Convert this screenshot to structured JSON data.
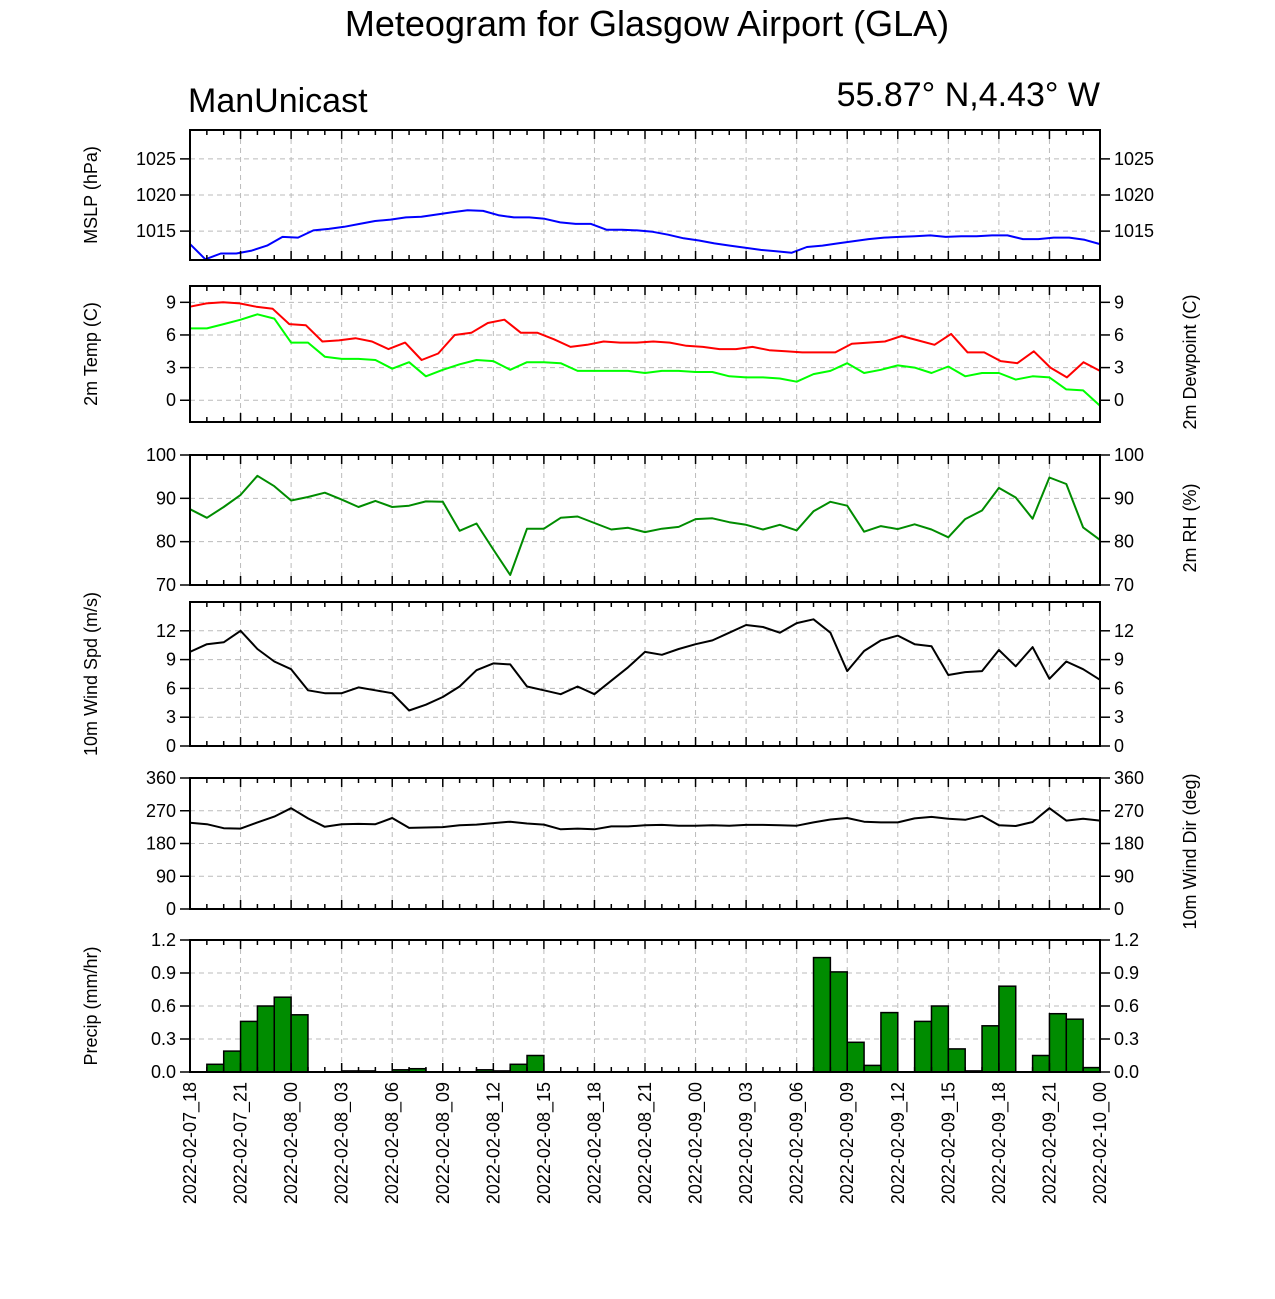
{
  "title": "Meteogram for Glasgow Airport (GLA)",
  "model": "ManUnicast",
  "location": "55.87° N,4.43° W",
  "colors": {
    "mslp": "#0000ff",
    "temp": "#ff0000",
    "dewpoint": "#00ff00",
    "rh": "#008c00",
    "wind": "#000000",
    "precip_fill": "#008c00"
  },
  "x_tick_labels": [
    "2022-02-07_18",
    "2022-02-07_21",
    "2022-02-08_00",
    "2022-02-08_03",
    "2022-02-08_06",
    "2022-02-08_09",
    "2022-02-08_12",
    "2022-02-08_15",
    "2022-02-08_18",
    "2022-02-08_21",
    "2022-02-09_00",
    "2022-02-09_03",
    "2022-02-09_06",
    "2022-02-09_09",
    "2022-02-09_12",
    "2022-02-09_15",
    "2022-02-09_18",
    "2022-02-09_21",
    "2022-02-10_00"
  ],
  "chart_data": [
    {
      "type": "line",
      "ylabel": "MSLP (hPa)",
      "yticks": [
        1015,
        1020,
        1025
      ],
      "ylim": [
        1011,
        1029
      ],
      "right_ticks": true,
      "grid": true,
      "x_range": [
        "2022-02-07_18",
        "2022-02-10_00"
      ],
      "series": [
        {
          "color": "mslp",
          "values": [
            1013.2,
            1011.1,
            1011.9,
            1011.9,
            1012.3,
            1013.0,
            1014.2,
            1014.1,
            1015.1,
            1015.3,
            1015.6,
            1016.0,
            1016.4,
            1016.6,
            1016.9,
            1017.0,
            1017.3,
            1017.6,
            1017.9,
            1017.8,
            1017.2,
            1016.9,
            1016.9,
            1016.7,
            1016.2,
            1016.0,
            1016.0,
            1015.2,
            1015.2,
            1015.1,
            1014.9,
            1014.5,
            1014.0,
            1013.7,
            1013.3,
            1013.0,
            1012.7,
            1012.4,
            1012.2,
            1012.0,
            1012.8,
            1013.0,
            1013.3,
            1013.6,
            1013.9,
            1014.1,
            1014.2,
            1014.3,
            1014.4,
            1014.2,
            1014.3,
            1014.3,
            1014.4,
            1014.4,
            1013.9,
            1013.9,
            1014.1,
            1014.1,
            1013.8,
            1013.2
          ]
        }
      ]
    },
    {
      "type": "line",
      "ylabel": "2m Temp (C)",
      "ylabel_right": "2m Dewpoint (C)",
      "yticks": [
        0,
        3,
        6,
        9
      ],
      "ylim": [
        -2,
        10.5
      ],
      "right_ticks": true,
      "grid": true,
      "series": [
        {
          "color": "temp",
          "values": [
            8.6,
            8.9,
            9.0,
            8.9,
            8.6,
            8.4,
            7.0,
            6.9,
            5.4,
            5.5,
            5.7,
            5.4,
            4.7,
            5.3,
            3.7,
            4.3,
            6.0,
            6.2,
            7.1,
            7.4,
            6.2,
            6.2,
            5.6,
            4.9,
            5.1,
            5.4,
            5.3,
            5.3,
            5.4,
            5.3,
            5.0,
            4.9,
            4.7,
            4.7,
            4.9,
            4.6,
            4.5,
            4.4,
            4.4,
            4.4,
            5.2,
            5.3,
            5.4,
            5.9,
            5.5,
            5.1,
            6.1,
            4.4,
            4.4,
            3.6,
            3.4,
            4.5,
            3.0,
            2.1,
            3.5,
            2.7
          ]
        },
        {
          "color": "dewpoint",
          "values": [
            6.6,
            6.6,
            7.0,
            7.4,
            7.9,
            7.5,
            5.3,
            5.3,
            4.0,
            3.8,
            3.8,
            3.7,
            2.9,
            3.5,
            2.2,
            2.8,
            3.3,
            3.7,
            3.6,
            2.8,
            3.5,
            3.5,
            3.4,
            2.7,
            2.7,
            2.7,
            2.7,
            2.5,
            2.7,
            2.7,
            2.6,
            2.6,
            2.2,
            2.1,
            2.1,
            2.0,
            1.7,
            2.4,
            2.7,
            3.4,
            2.5,
            2.8,
            3.2,
            3.0,
            2.5,
            3.1,
            2.2,
            2.5,
            2.5,
            1.9,
            2.2,
            2.1,
            1.0,
            0.9,
            -0.5
          ]
        }
      ]
    },
    {
      "type": "line",
      "ylabel": "",
      "ylabel_right": "2m RH (%)",
      "yticks": [
        70,
        80,
        90,
        100
      ],
      "ylim": [
        70,
        100
      ],
      "right_ticks": true,
      "grid": true,
      "series": [
        {
          "color": "rh",
          "values": [
            87.5,
            85.5,
            88.0,
            90.8,
            95.2,
            92.8,
            89.5,
            90.3,
            91.3,
            89.7,
            88.0,
            89.4,
            88.0,
            88.3,
            89.3,
            89.2,
            82.5,
            84.2,
            78.2,
            72.3,
            83.0,
            83.0,
            85.5,
            85.8,
            84.3,
            82.8,
            83.2,
            82.2,
            83.0,
            83.4,
            85.2,
            85.4,
            84.5,
            83.9,
            82.8,
            83.9,
            82.6,
            87.0,
            89.2,
            88.3,
            82.3,
            83.6,
            82.9,
            84.0,
            82.8,
            81.0,
            85.2,
            87.2,
            92.4,
            90.2,
            85.3,
            94.8,
            93.3,
            83.3,
            80.4
          ]
        }
      ]
    },
    {
      "type": "line",
      "ylabel": "10m Wind Spd (m/s)",
      "yticks": [
        0,
        3,
        6,
        9,
        12
      ],
      "ylim": [
        0,
        15
      ],
      "right_ticks": true,
      "grid": true,
      "series": [
        {
          "color": "wind",
          "values": [
            9.8,
            10.6,
            10.8,
            12.0,
            10.1,
            8.8,
            8.0,
            5.8,
            5.5,
            5.5,
            6.1,
            5.8,
            5.5,
            3.7,
            4.3,
            5.1,
            6.2,
            7.9,
            8.6,
            8.5,
            6.2,
            5.8,
            5.4,
            6.2,
            5.4,
            6.8,
            8.2,
            9.8,
            9.5,
            10.1,
            10.6,
            11.0,
            11.8,
            12.6,
            12.4,
            11.8,
            12.8,
            13.2,
            11.8,
            7.8,
            9.9,
            11.0,
            11.5,
            10.6,
            10.4,
            7.4,
            7.7,
            7.8,
            10.0,
            8.3,
            10.3,
            7.0,
            8.8,
            8.0,
            6.9
          ]
        }
      ]
    },
    {
      "type": "line",
      "ylabel": "",
      "ylabel_right": "10m Wind Dir (deg)",
      "yticks": [
        0,
        90,
        180,
        270,
        360
      ],
      "ylim": [
        0,
        360
      ],
      "right_ticks": true,
      "grid": true,
      "series": [
        {
          "color": "wind",
          "values": [
            237,
            233,
            222,
            221,
            238,
            254,
            277,
            249,
            226,
            233,
            234,
            233,
            250,
            223,
            224,
            225,
            230,
            232,
            236,
            240,
            235,
            232,
            219,
            221,
            219,
            227,
            227,
            230,
            231,
            229,
            229,
            230,
            229,
            231,
            231,
            230,
            229,
            238,
            246,
            250,
            240,
            238,
            238,
            249,
            253,
            248,
            245,
            256,
            230,
            228,
            239,
            277,
            243,
            248,
            243
          ]
        }
      ]
    },
    {
      "type": "bar",
      "ylabel": "Precip (mm/hr)",
      "yticks": [
        "0.0",
        "0.3",
        "0.6",
        "0.9",
        "1.2"
      ],
      "ylim": [
        0,
        1.2
      ],
      "right_ticks": true,
      "grid": true,
      "series": [
        {
          "color": "precip_fill",
          "values": [
            0,
            0.07,
            0.19,
            0.46,
            0.6,
            0.68,
            0.52,
            0,
            0,
            0.01,
            0.01,
            0,
            0.02,
            0.03,
            0,
            0,
            0,
            0.02,
            0.01,
            0.07,
            0.15,
            0,
            0,
            0,
            0,
            0,
            0,
            0,
            0,
            0,
            0,
            0,
            0,
            0,
            0,
            0,
            0,
            1.04,
            0.91,
            0.27,
            0.06,
            0.54,
            0,
            0.46,
            0.6,
            0.21,
            0.01,
            0.42,
            0.78,
            0,
            0.15,
            0.53,
            0.48,
            0.04,
            0
          ]
        }
      ]
    }
  ]
}
